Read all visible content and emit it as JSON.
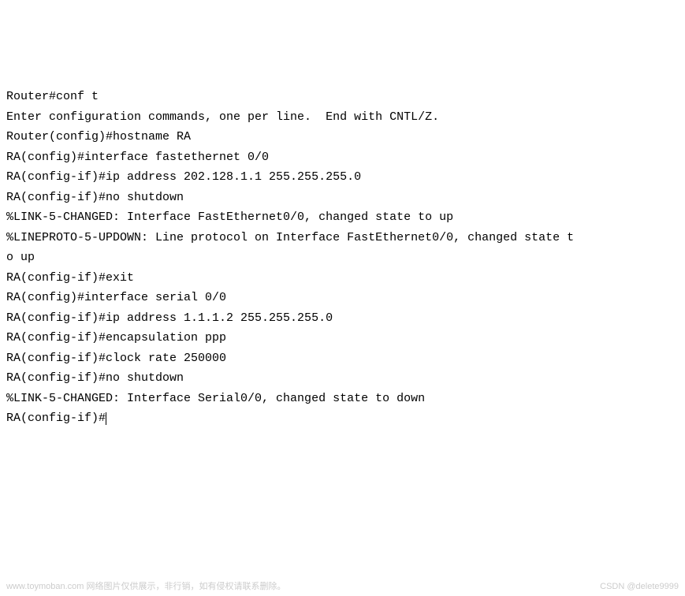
{
  "terminal": {
    "lines": [
      "Router#conf t",
      "Enter configuration commands, one per line.  End with CNTL/Z.",
      "Router(config)#hostname RA",
      "RA(config)#interface fastethernet 0/0",
      "RA(config-if)#ip address 202.128.1.1 255.255.255.0",
      "RA(config-if)#no shutdown",
      "",
      "%LINK-5-CHANGED: Interface FastEthernet0/0, changed state to up",
      "",
      "%LINEPROTO-5-UPDOWN: Line protocol on Interface FastEthernet0/0, changed state t",
      "o up",
      "",
      "RA(config-if)#exit",
      "RA(config)#interface serial 0/0",
      "RA(config-if)#ip address 1.1.1.2 255.255.255.0",
      "RA(config-if)#encapsulation ppp",
      "RA(config-if)#clock rate 250000",
      "RA(config-if)#no shutdown",
      "",
      "%LINK-5-CHANGED: Interface Serial0/0, changed state to down",
      "RA(config-if)#"
    ],
    "font_family": "Courier New",
    "font_size": 15,
    "text_color": "#000000",
    "background_color": "#ffffff"
  },
  "watermarks": {
    "left": "www.toymoban.com 网络图片仅供展示，非行销，如有侵权请联系删除。",
    "right": "CSDN @delete9999"
  }
}
